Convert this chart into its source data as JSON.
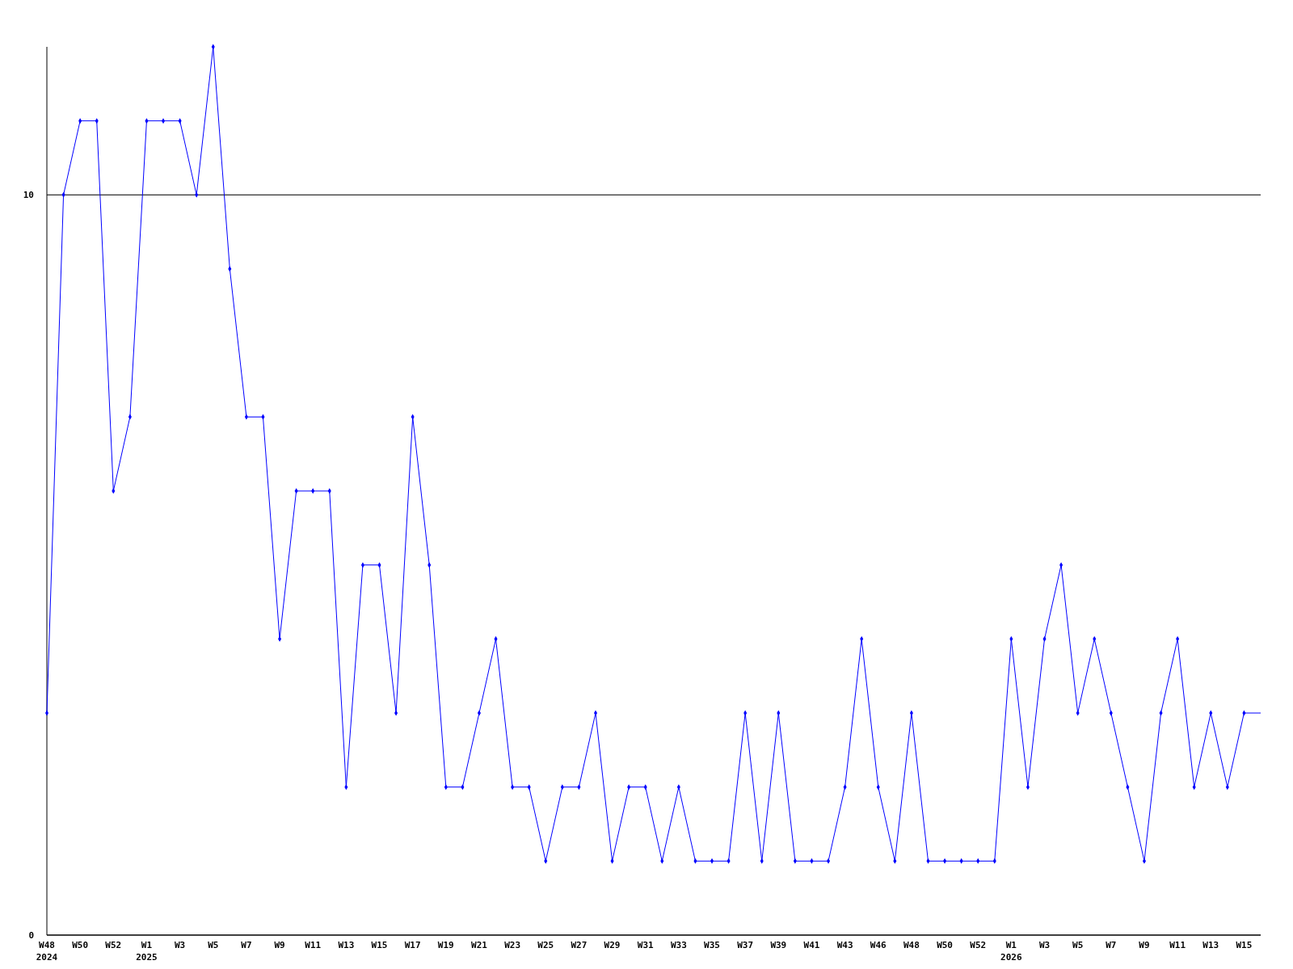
{
  "chart_data": {
    "type": "line",
    "categories": [
      "W48 2024",
      null,
      "W50",
      null,
      "W52",
      null,
      "W1 2025",
      null,
      "W3",
      null,
      "W5",
      null,
      "W7",
      null,
      "W9",
      null,
      "W11",
      null,
      "W13",
      null,
      "W15",
      null,
      "W17",
      null,
      "W19",
      null,
      "W21",
      null,
      "W23",
      null,
      "W25",
      null,
      "W27",
      null,
      "W29",
      null,
      "W31",
      null,
      "W33",
      null,
      "W35",
      null,
      "W37",
      null,
      "W39",
      null,
      "W41",
      null,
      "W43",
      null,
      "W46",
      null,
      "W48",
      null,
      "W50",
      null,
      "W52",
      null,
      "W1 2026",
      null,
      "W3",
      null,
      "W5",
      null,
      "W7",
      null,
      "W9",
      null,
      "W11",
      null,
      "W13",
      null,
      "W15",
      null
    ],
    "series": [
      {
        "color": "#0000ff",
        "values": [
          3,
          10,
          11,
          11,
          6,
          7,
          11,
          11,
          11,
          10,
          12,
          9,
          7,
          7,
          4,
          6,
          6,
          6,
          2,
          5,
          5,
          3,
          7,
          5,
          2,
          2,
          3,
          4,
          2,
          2,
          1,
          2,
          2,
          3,
          1,
          2,
          2,
          1,
          2,
          1,
          1,
          1,
          3,
          1,
          3,
          1,
          1,
          1,
          2,
          4,
          2,
          1,
          3,
          1,
          1,
          1,
          1,
          1,
          4,
          2,
          4,
          5,
          3,
          4,
          3,
          2,
          1,
          3,
          4,
          2,
          3,
          2,
          3,
          3
        ]
      }
    ],
    "ylim": [
      0,
      12
    ],
    "yticks": [
      0,
      10
    ],
    "grid": "y",
    "marker": "diamond",
    "line_style": "solid"
  }
}
